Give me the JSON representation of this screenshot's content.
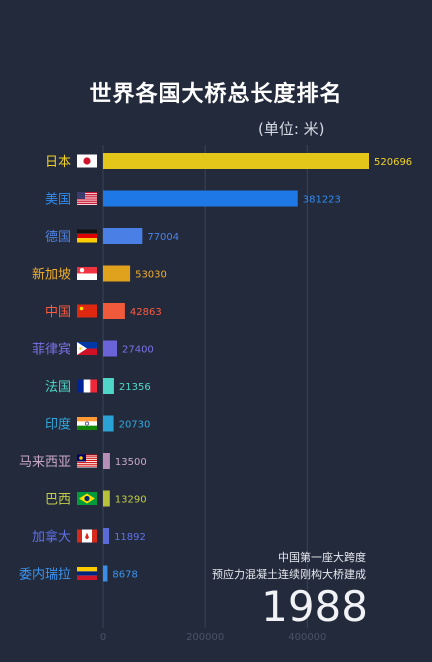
{
  "title": "世界各国大桥总长度排名",
  "unit": "(单位: 米)",
  "note_line1": "中国第一座大跨度",
  "note_line2": "预应力混凝土连续刚构大桥建成",
  "year": "1988",
  "chart_data": {
    "type": "bar",
    "orientation": "horizontal",
    "categories": [
      "日本",
      "美国",
      "德国",
      "新加坡",
      "中国",
      "菲律宾",
      "法国",
      "印度",
      "马来西亚",
      "巴西",
      "加拿大",
      "委内瑞拉"
    ],
    "values": [
      520696,
      381223,
      77004,
      53030,
      42863,
      27400,
      21356,
      20730,
      13500,
      13290,
      11892,
      8678
    ],
    "colors": [
      "#e4c61a",
      "#1e78e6",
      "#4a80e6",
      "#e0a11d",
      "#ef5a3a",
      "#6b63d8",
      "#4fd6c6",
      "#2aa2d6",
      "#b58fb8",
      "#b7c23a",
      "#5a6ad8",
      "#3b8ee8"
    ],
    "label_colors": [
      "#f2d324",
      "#2f8cf0",
      "#4e82e3",
      "#f0ae2a",
      "#ff5a3c",
      "#7a72e6",
      "#4fd9c8",
      "#31a9de",
      "#c9a8c6",
      "#c3cf43",
      "#5f71e6",
      "#3a95f0"
    ],
    "flags": [
      "japan-flag",
      "usa-flag",
      "germany-flag",
      "singapore-flag",
      "china-flag",
      "philippines-flag",
      "france-flag",
      "india-flag",
      "malaysia-flag",
      "brazil-flag",
      "canada-flag",
      "venezuela-flag"
    ],
    "x_ticks": [
      "0",
      "200000",
      "400000"
    ],
    "xlim": [
      0,
      540000
    ],
    "grid": true
  }
}
